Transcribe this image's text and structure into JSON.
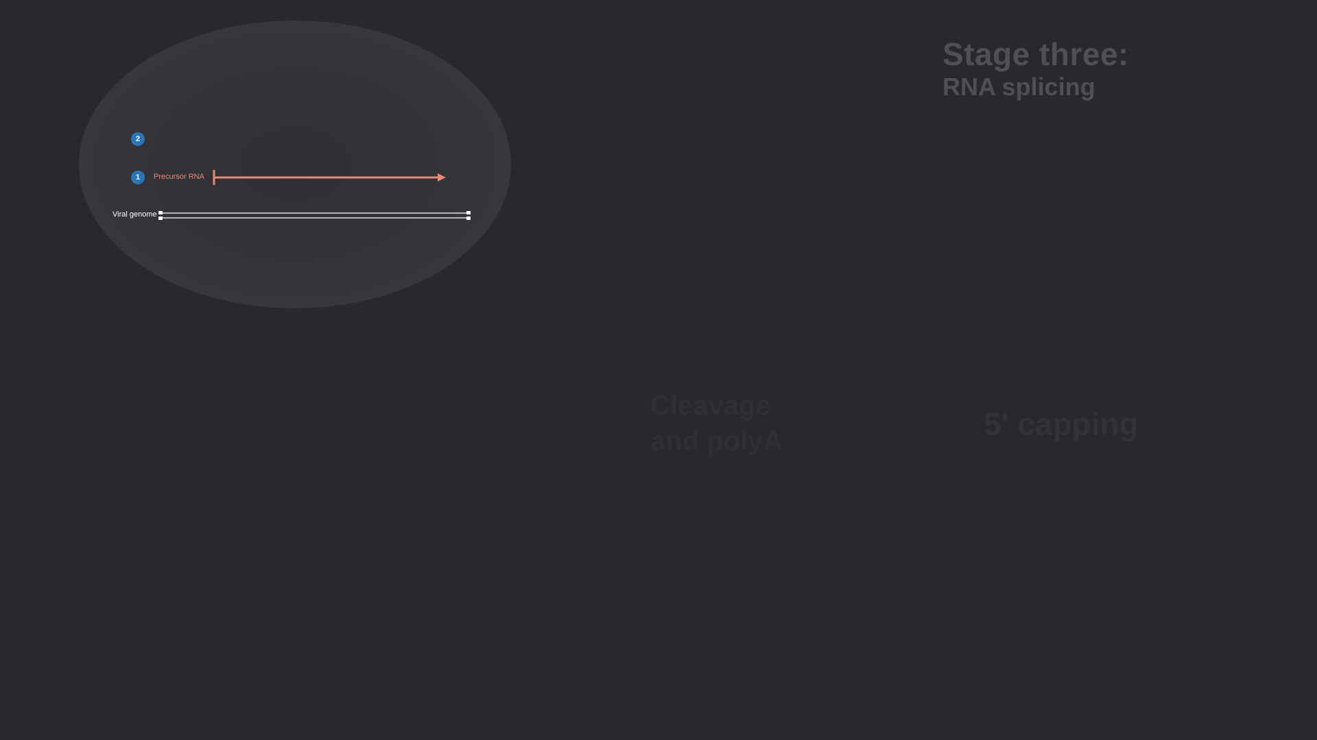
{
  "title": {
    "line1": "Stage three:",
    "line2": "RNA splicing"
  },
  "steps": [
    {
      "number": "1"
    },
    {
      "number": "2"
    }
  ],
  "labels": {
    "precursor_rna": "Precursor RNA",
    "viral_genome": "Viral genome"
  },
  "faded_text": {
    "left_line1": "Cleavage",
    "left_line2": "and polyA",
    "right": "5' capping"
  },
  "colors": {
    "background": "#28282d",
    "nucleus": "#36363a",
    "badge": "#2b74b6",
    "precursor_arrow": "#e88a78",
    "genome": "#ffffff",
    "title": "#4f4f55"
  }
}
